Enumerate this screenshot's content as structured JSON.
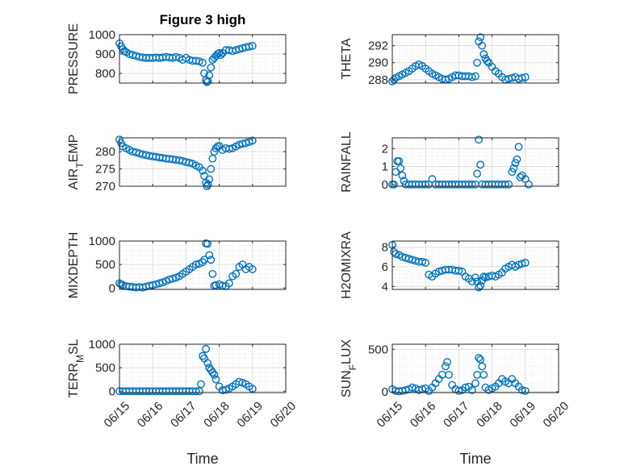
{
  "figure_title": "Figure 3 high",
  "colors": {
    "marker": "#0072bd",
    "axis": "#262626",
    "grid": "#d9d9d9"
  },
  "chart_data": [
    {
      "type": "scatter",
      "id": "pressure",
      "ylabel": "PRESSURE",
      "ylabel_sub": "",
      "title": "Figure 3 high",
      "xlabel": "",
      "xlim": [
        0,
        5
      ],
      "ylim": [
        750,
        1000
      ],
      "yticks": [
        800,
        900,
        1000
      ],
      "xticks": [
        0,
        1,
        2,
        3,
        4,
        5
      ],
      "xtick_labels": [
        "",
        "",
        "",
        "",
        "",
        ""
      ],
      "grid": true,
      "x": [
        0,
        0.05,
        0.1,
        0.15,
        0.2,
        0.3,
        0.4,
        0.5,
        0.6,
        0.7,
        0.8,
        0.9,
        1.0,
        1.1,
        1.2,
        1.3,
        1.4,
        1.5,
        1.6,
        1.7,
        1.8,
        1.9,
        2.0,
        2.1,
        2.2,
        2.3,
        2.4,
        2.5,
        2.55,
        2.6,
        2.63,
        2.66,
        2.7,
        2.75,
        2.8,
        2.85,
        2.9,
        2.95,
        3.0,
        3.05,
        3.1,
        3.2,
        3.3,
        3.4,
        3.5,
        3.6,
        3.7,
        3.8,
        3.9,
        4.0
      ],
      "y": [
        955,
        940,
        925,
        915,
        910,
        900,
        895,
        890,
        885,
        882,
        880,
        880,
        880,
        882,
        880,
        882,
        885,
        882,
        880,
        885,
        880,
        870,
        880,
        870,
        865,
        865,
        862,
        855,
        800,
        765,
        755,
        760,
        790,
        830,
        870,
        880,
        890,
        900,
        905,
        895,
        905,
        920,
        920,
        915,
        920,
        925,
        930,
        935,
        938,
        942
      ]
    },
    {
      "type": "scatter",
      "id": "theta",
      "ylabel": "THETA",
      "ylabel_sub": "",
      "title": "",
      "xlabel": "",
      "xlim": [
        0,
        5
      ],
      "ylim": [
        287.6,
        293.3
      ],
      "yticks": [
        288,
        290,
        292
      ],
      "xticks": [
        0,
        1,
        2,
        3,
        4,
        5
      ],
      "xtick_labels": [
        "",
        "",
        "",
        "",
        "",
        ""
      ],
      "grid": true,
      "x": [
        0,
        0.05,
        0.1,
        0.2,
        0.3,
        0.4,
        0.5,
        0.6,
        0.7,
        0.8,
        0.9,
        1.0,
        1.1,
        1.2,
        1.3,
        1.4,
        1.5,
        1.6,
        1.7,
        1.8,
        1.9,
        2.0,
        2.1,
        2.2,
        2.3,
        2.4,
        2.5,
        2.55,
        2.6,
        2.65,
        2.7,
        2.75,
        2.8,
        2.85,
        2.9,
        3.0,
        3.1,
        3.2,
        3.3,
        3.4,
        3.5,
        3.6,
        3.7,
        3.8,
        3.9,
        4.0
      ],
      "y": [
        287.8,
        288.0,
        288.2,
        288.4,
        288.6,
        288.8,
        289.0,
        289.3,
        289.6,
        289.8,
        289.6,
        289.3,
        289.0,
        288.7,
        288.5,
        288.3,
        288.1,
        288.0,
        288.1,
        288.3,
        288.5,
        288.5,
        288.4,
        288.4,
        288.4,
        288.3,
        288.4,
        290.0,
        292.5,
        293.0,
        292.0,
        291.0,
        290.5,
        290.2,
        290.0,
        289.5,
        289.0,
        288.7,
        288.3,
        288.0,
        288.1,
        288.2,
        288.3,
        288.1,
        288.2,
        288.3
      ]
    },
    {
      "type": "scatter",
      "id": "air_temp",
      "ylabel": "AIR",
      "ylabel_sub": "T",
      "ylabel_tail": "EMP",
      "title": "",
      "xlabel": "",
      "xlim": [
        0,
        5
      ],
      "ylim": [
        270,
        284
      ],
      "yticks": [
        270,
        275,
        280
      ],
      "xticks": [
        0,
        1,
        2,
        3,
        4,
        5
      ],
      "xtick_labels": [
        "",
        "",
        "",
        "",
        "",
        ""
      ],
      "grid": true,
      "x": [
        0,
        0.05,
        0.1,
        0.2,
        0.3,
        0.4,
        0.5,
        0.6,
        0.7,
        0.8,
        0.9,
        1.0,
        1.1,
        1.2,
        1.3,
        1.4,
        1.5,
        1.6,
        1.7,
        1.8,
        1.9,
        2.0,
        2.1,
        2.2,
        2.3,
        2.4,
        2.5,
        2.55,
        2.6,
        2.63,
        2.66,
        2.7,
        2.75,
        2.8,
        2.85,
        2.9,
        2.95,
        3.0,
        3.1,
        3.2,
        3.3,
        3.4,
        3.5,
        3.6,
        3.7,
        3.8,
        3.9,
        4.0
      ],
      "y": [
        283.5,
        282.5,
        281.5,
        281,
        280.5,
        280,
        279.8,
        279.5,
        279.2,
        279,
        278.8,
        278.6,
        278.5,
        278.3,
        278.2,
        278,
        277.9,
        277.8,
        277.6,
        277.5,
        277.3,
        277,
        276.8,
        276.5,
        276,
        275.5,
        274.5,
        273,
        271,
        270,
        270.5,
        272,
        275,
        278,
        280,
        281,
        281.5,
        281.7,
        280.5,
        281,
        280.8,
        281,
        281.5,
        282,
        282.3,
        282.5,
        282.8,
        283.2
      ]
    },
    {
      "type": "scatter",
      "id": "rainfall",
      "ylabel": "RAINFALL",
      "ylabel_sub": "",
      "title": "",
      "xlabel": "",
      "xlim": [
        0,
        5
      ],
      "ylim": [
        -0.1,
        2.6
      ],
      "yticks": [
        0,
        1,
        2
      ],
      "xticks": [
        0,
        1,
        2,
        3,
        4,
        5
      ],
      "xtick_labels": [
        "",
        "",
        "",
        "",
        "",
        ""
      ],
      "grid": true,
      "x": [
        0,
        0.05,
        0.1,
        0.15,
        0.2,
        0.25,
        0.3,
        0.35,
        0.4,
        0.5,
        0.6,
        0.7,
        0.8,
        0.9,
        1.0,
        1.1,
        1.2,
        1.3,
        1.4,
        1.5,
        1.6,
        1.7,
        1.8,
        1.9,
        2.0,
        2.1,
        2.2,
        2.3,
        2.4,
        2.5,
        2.55,
        2.6,
        2.65,
        2.7,
        2.8,
        2.9,
        3.0,
        3.1,
        3.2,
        3.3,
        3.4,
        3.5,
        3.6,
        3.65,
        3.7,
        3.75,
        3.8,
        3.85,
        3.9,
        4.0,
        4.1
      ],
      "y": [
        0,
        0,
        0.7,
        1.3,
        1.3,
        0.9,
        0.5,
        0.2,
        0,
        0,
        0,
        0,
        0,
        0,
        0,
        0,
        0.3,
        0,
        0,
        0,
        0,
        0,
        0,
        0,
        0,
        0,
        0,
        0,
        0,
        0,
        0.6,
        2.5,
        1.1,
        0,
        0,
        0,
        0,
        0,
        0,
        0,
        0,
        0,
        0.7,
        0.9,
        1.2,
        1.4,
        2.1,
        0.4,
        0.5,
        0.3,
        0
      ]
    },
    {
      "type": "scatter",
      "id": "mixdepth",
      "ylabel": "MIXDEPTH",
      "ylabel_sub": "",
      "title": "",
      "xlabel": "",
      "xlim": [
        0,
        5
      ],
      "ylim": [
        -30,
        1000
      ],
      "yticks": [
        0,
        500,
        1000
      ],
      "xticks": [
        0,
        1,
        2,
        3,
        4,
        5
      ],
      "xtick_labels": [
        "",
        "",
        "",
        "",
        "",
        ""
      ],
      "grid": true,
      "x": [
        0,
        0.05,
        0.1,
        0.2,
        0.3,
        0.4,
        0.5,
        0.6,
        0.7,
        0.8,
        0.9,
        1.0,
        1.1,
        1.2,
        1.3,
        1.4,
        1.5,
        1.6,
        1.7,
        1.8,
        1.9,
        2.0,
        2.1,
        2.2,
        2.3,
        2.4,
        2.5,
        2.55,
        2.6,
        2.65,
        2.7,
        2.75,
        2.8,
        2.85,
        2.9,
        3.0,
        3.1,
        3.2,
        3.3,
        3.4,
        3.5,
        3.6,
        3.7,
        3.8,
        3.9,
        4.0
      ],
      "y": [
        100,
        80,
        60,
        40,
        30,
        20,
        10,
        20,
        10,
        30,
        50,
        60,
        80,
        100,
        120,
        150,
        180,
        200,
        220,
        250,
        300,
        350,
        400,
        450,
        500,
        520,
        550,
        600,
        950,
        940,
        700,
        600,
        300,
        50,
        60,
        80,
        50,
        40,
        100,
        250,
        300,
        450,
        500,
        400,
        450,
        400
      ]
    },
    {
      "type": "scatter",
      "id": "h2omixra",
      "ylabel": "H2OMIXRA",
      "ylabel_sub": "",
      "title": "",
      "xlabel": "",
      "xlim": [
        0,
        5
      ],
      "ylim": [
        3.7,
        8.6
      ],
      "yticks": [
        4,
        6,
        8
      ],
      "xticks": [
        0,
        1,
        2,
        3,
        4,
        5
      ],
      "xtick_labels": [
        "",
        "",
        "",
        "",
        "",
        ""
      ],
      "grid": true,
      "x": [
        0,
        0.05,
        0.1,
        0.2,
        0.3,
        0.4,
        0.5,
        0.6,
        0.7,
        0.8,
        0.9,
        1.0,
        1.1,
        1.2,
        1.3,
        1.4,
        1.5,
        1.6,
        1.7,
        1.8,
        1.9,
        2.0,
        2.1,
        2.2,
        2.3,
        2.4,
        2.5,
        2.55,
        2.6,
        2.65,
        2.7,
        2.75,
        2.8,
        2.9,
        3.0,
        3.1,
        3.2,
        3.3,
        3.4,
        3.5,
        3.6,
        3.7,
        3.8,
        3.9,
        4.0
      ],
      "y": [
        8.2,
        7.5,
        7.3,
        7.2,
        7.0,
        6.9,
        6.8,
        6.7,
        6.6,
        6.5,
        6.5,
        6.4,
        5.2,
        5.0,
        5.3,
        5.5,
        5.6,
        5.7,
        5.7,
        5.7,
        5.6,
        5.6,
        5.5,
        5.0,
        4.8,
        4.5,
        4.9,
        4.5,
        3.9,
        4.1,
        4.6,
        5.0,
        4.9,
        5.0,
        5.1,
        5.0,
        5.2,
        5.4,
        5.8,
        6.0,
        6.2,
        6.0,
        6.2,
        6.3,
        6.4
      ]
    },
    {
      "type": "scatter",
      "id": "terr_msl",
      "ylabel": "TERR",
      "ylabel_sub": "M",
      "ylabel_tail": "SL",
      "title": "",
      "xlabel": "Time",
      "xlim": [
        0,
        5
      ],
      "ylim": [
        -30,
        1000
      ],
      "yticks": [
        0,
        500,
        1000
      ],
      "xticks": [
        0,
        1,
        2,
        3,
        4,
        5
      ],
      "xtick_labels": [
        "06/15",
        "06/16",
        "06/17",
        "06/18",
        "06/19",
        "06/20"
      ],
      "grid": true,
      "x": [
        0,
        0.1,
        0.2,
        0.3,
        0.4,
        0.5,
        0.6,
        0.7,
        0.8,
        0.9,
        1.0,
        1.1,
        1.2,
        1.3,
        1.4,
        1.5,
        1.6,
        1.7,
        1.8,
        1.9,
        2.0,
        2.1,
        2.2,
        2.3,
        2.4,
        2.45,
        2.5,
        2.55,
        2.6,
        2.65,
        2.7,
        2.75,
        2.8,
        2.85,
        2.9,
        3.0,
        3.1,
        3.2,
        3.3,
        3.4,
        3.5,
        3.6,
        3.7,
        3.8,
        3.9,
        4.0
      ],
      "y": [
        0,
        0,
        0,
        0,
        0,
        0,
        0,
        0,
        0,
        0,
        0,
        0,
        0,
        0,
        0,
        0,
        0,
        0,
        0,
        0,
        0,
        0,
        0,
        0,
        0,
        150,
        750,
        700,
        900,
        600,
        500,
        450,
        400,
        350,
        250,
        100,
        20,
        30,
        60,
        100,
        150,
        200,
        180,
        150,
        100,
        50
      ]
    },
    {
      "type": "scatter",
      "id": "sun_flux",
      "ylabel": "SUN",
      "ylabel_sub": "F",
      "ylabel_tail": "LUX",
      "title": "",
      "xlabel": "Time",
      "xlim": [
        0,
        5
      ],
      "ylim": [
        -10,
        560
      ],
      "yticks": [
        0,
        500
      ],
      "xticks": [
        0,
        1,
        2,
        3,
        4,
        5
      ],
      "xtick_labels": [
        "06/15",
        "06/16",
        "06/17",
        "06/18",
        "06/19",
        "06/20"
      ],
      "grid": true,
      "x": [
        0,
        0.1,
        0.2,
        0.3,
        0.4,
        0.5,
        0.6,
        0.7,
        0.8,
        0.9,
        1.0,
        1.1,
        1.2,
        1.3,
        1.4,
        1.5,
        1.6,
        1.65,
        1.7,
        1.8,
        1.9,
        2.0,
        2.1,
        2.2,
        2.3,
        2.4,
        2.5,
        2.55,
        2.6,
        2.65,
        2.7,
        2.75,
        2.8,
        2.9,
        3.0,
        3.1,
        3.2,
        3.3,
        3.4,
        3.5,
        3.6,
        3.7,
        3.8,
        3.9,
        4.0
      ],
      "y": [
        30,
        10,
        5,
        10,
        20,
        30,
        50,
        40,
        20,
        30,
        40,
        10,
        50,
        100,
        150,
        200,
        300,
        350,
        200,
        80,
        30,
        10,
        20,
        50,
        60,
        20,
        100,
        200,
        400,
        380,
        300,
        200,
        50,
        20,
        40,
        60,
        100,
        150,
        120,
        100,
        150,
        100,
        60,
        20,
        10
      ]
    }
  ]
}
